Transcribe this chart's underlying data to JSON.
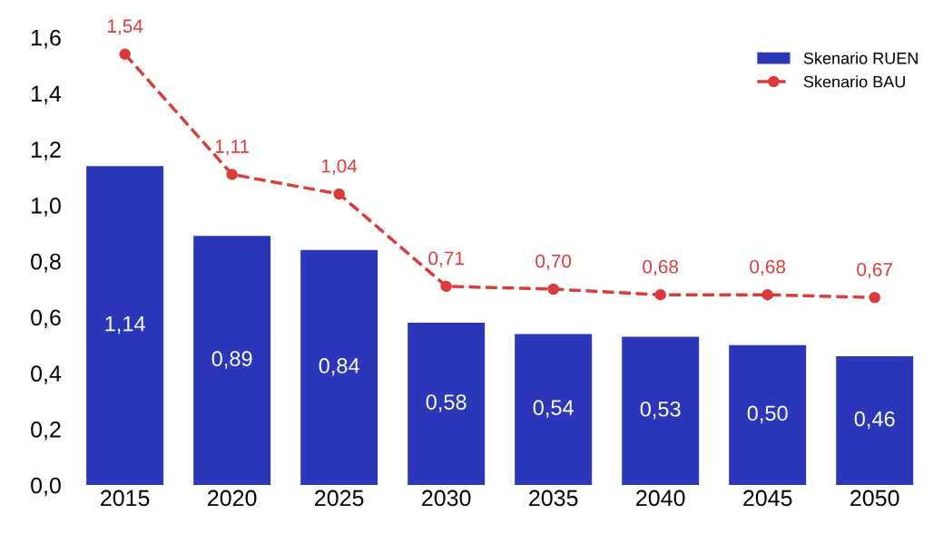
{
  "chart_data": {
    "type": "bar",
    "categories": [
      "2015",
      "2020",
      "2025",
      "2030",
      "2035",
      "2040",
      "2045",
      "2050"
    ],
    "series": [
      {
        "name": "Skenario RUEN",
        "color": "#2b36b8",
        "values": [
          1.14,
          0.89,
          0.84,
          0.58,
          0.54,
          0.53,
          0.5,
          0.46
        ],
        "value_labels": [
          "1,14",
          "0,89",
          "0,84",
          "0,58",
          "0,54",
          "0,53",
          "0,50",
          "0,46"
        ]
      },
      {
        "name": "Skenario BAU",
        "type": "line",
        "color": "#d93c3c",
        "marker": "circle",
        "line_style": "dashed",
        "values": [
          1.54,
          1.11,
          1.04,
          0.71,
          0.7,
          0.68,
          0.68,
          0.67
        ],
        "value_labels": [
          "1,54",
          "1,11",
          "1,04",
          "0,71",
          "0,70",
          "0,68",
          "0,68",
          "0,67"
        ]
      }
    ],
    "ylim": [
      0,
      1.6
    ],
    "yticks": [
      {
        "value": 0,
        "label": "0,0"
      },
      {
        "value": 0.2,
        "label": "0,2"
      },
      {
        "value": 0.4,
        "label": "0,4"
      },
      {
        "value": 0.6,
        "label": "0,6"
      },
      {
        "value": 0.8,
        "label": "0,8"
      },
      {
        "value": 1.0,
        "label": "1,0"
      },
      {
        "value": 1.2,
        "label": "1,2"
      },
      {
        "value": 1.4,
        "label": "1,4"
      },
      {
        "value": 1.6,
        "label": "1,6"
      }
    ],
    "grid": false,
    "legend": "top right"
  }
}
